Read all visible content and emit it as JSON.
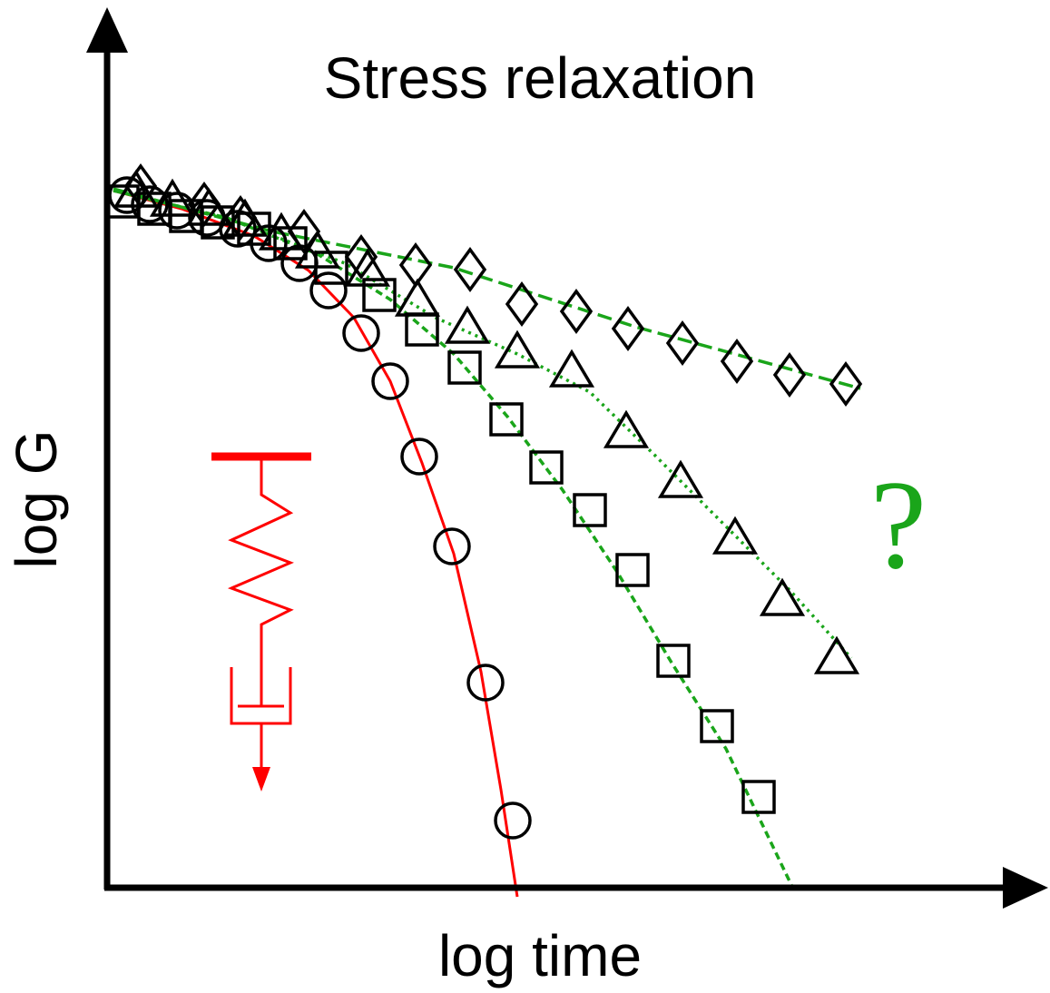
{
  "title": "Stress relaxation",
  "x_label": "log time",
  "y_label": "log G",
  "annotation": "?"
}
